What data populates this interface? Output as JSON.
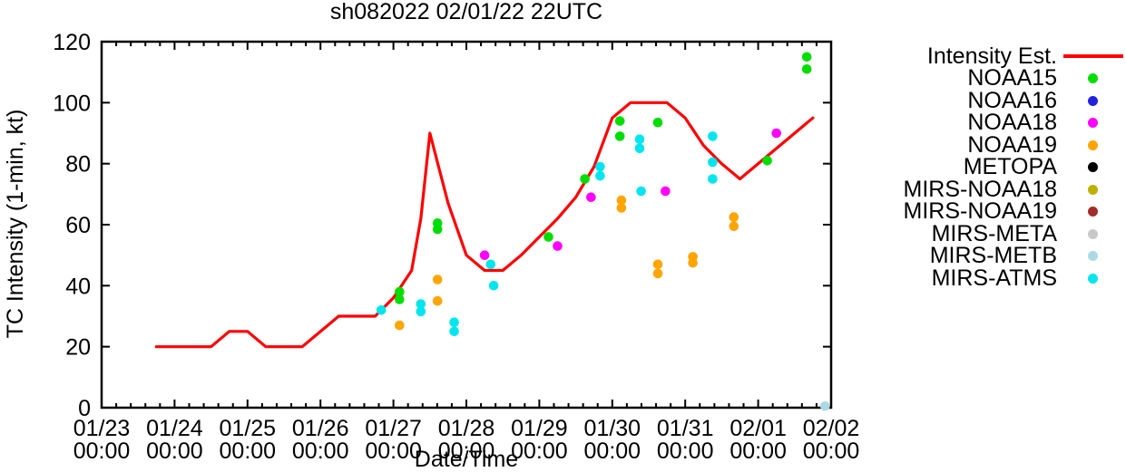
{
  "window": {
    "background": "#ffffff",
    "text_color": "#000000"
  },
  "chart_data": {
    "type": "line",
    "title": "sh082022 02/01/22 22UTC",
    "xlabel": "Date/Time",
    "ylabel": "TC Intensity (1-min, kt)",
    "grid": false,
    "legend_position": "right-outside",
    "x_axis": {
      "unit": "hours since 01/23 00:00",
      "range": [
        0,
        240
      ],
      "minor_divisions_per_day": 5,
      "major_ticks": [
        {
          "hours": 0,
          "date": "01/23",
          "time": "00:00"
        },
        {
          "hours": 24,
          "date": "01/24",
          "time": "00:00"
        },
        {
          "hours": 48,
          "date": "01/25",
          "time": "00:00"
        },
        {
          "hours": 72,
          "date": "01/26",
          "time": "00:00"
        },
        {
          "hours": 96,
          "date": "01/27",
          "time": "00:00"
        },
        {
          "hours": 120,
          "date": "01/28",
          "time": "00:00"
        },
        {
          "hours": 144,
          "date": "01/29",
          "time": "00:00"
        },
        {
          "hours": 168,
          "date": "01/30",
          "time": "00:00"
        },
        {
          "hours": 192,
          "date": "01/31",
          "time": "00:00"
        },
        {
          "hours": 216,
          "date": "02/01",
          "time": "00:00"
        },
        {
          "hours": 240,
          "date": "02/02",
          "time": "00:00"
        }
      ]
    },
    "y_axis": {
      "range": [
        0,
        120
      ],
      "ticks": [
        0,
        20,
        40,
        60,
        80,
        100,
        120
      ]
    },
    "series": [
      {
        "name": "Intensity Est.",
        "style": "line",
        "color": "#ff0000",
        "points": [
          [
            18,
            20
          ],
          [
            36,
            20
          ],
          [
            42,
            25
          ],
          [
            48,
            25
          ],
          [
            54,
            20
          ],
          [
            66,
            20
          ],
          [
            78,
            30
          ],
          [
            90,
            30
          ],
          [
            96,
            36
          ],
          [
            102,
            45
          ],
          [
            105,
            62
          ],
          [
            108,
            90
          ],
          [
            114,
            67
          ],
          [
            120,
            50
          ],
          [
            126,
            45
          ],
          [
            132,
            45
          ],
          [
            138,
            50
          ],
          [
            144,
            56
          ],
          [
            150,
            62
          ],
          [
            156,
            69
          ],
          [
            162,
            79
          ],
          [
            168,
            95
          ],
          [
            174,
            100
          ],
          [
            186,
            100
          ],
          [
            192,
            95
          ],
          [
            198,
            86
          ],
          [
            204,
            80
          ],
          [
            210,
            75
          ],
          [
            234,
            95
          ]
        ]
      },
      {
        "name": "NOAA15",
        "style": "points",
        "color": "#00dd00",
        "points": [
          [
            98,
            38
          ],
          [
            98,
            35.5
          ],
          [
            110.5,
            60.5
          ],
          [
            110.5,
            58.5
          ],
          [
            147,
            56
          ],
          [
            159,
            75
          ],
          [
            170.5,
            94
          ],
          [
            170.5,
            89
          ],
          [
            183,
            93.5
          ],
          [
            219,
            81
          ],
          [
            232,
            115
          ],
          [
            232,
            111
          ]
        ]
      },
      {
        "name": "NOAA16",
        "style": "points",
        "color": "#2222dd",
        "points": []
      },
      {
        "name": "NOAA18",
        "style": "points",
        "color": "#ff00ff",
        "points": [
          [
            126,
            50
          ],
          [
            150,
            53
          ],
          [
            161,
            69
          ],
          [
            185.5,
            71
          ],
          [
            222,
            90
          ]
        ]
      },
      {
        "name": "NOAA19",
        "style": "points",
        "color": "#ffa500",
        "points": [
          [
            98,
            27
          ],
          [
            110.5,
            42
          ],
          [
            110.5,
            35
          ],
          [
            171,
            68
          ],
          [
            171,
            65.5
          ],
          [
            183,
            47
          ],
          [
            183,
            44
          ],
          [
            194.5,
            49.5
          ],
          [
            194.5,
            47.5
          ],
          [
            208,
            62.5
          ],
          [
            208,
            59.5
          ]
        ]
      },
      {
        "name": "METOPA",
        "style": "points",
        "color": "#000000",
        "points": []
      },
      {
        "name": "MIRS-NOAA18",
        "style": "points",
        "color": "#bfb000",
        "points": []
      },
      {
        "name": "MIRS-NOAA19",
        "style": "points",
        "color": "#a52a2a",
        "points": []
      },
      {
        "name": "MIRS-META",
        "style": "points",
        "color": "#c8c8c8",
        "points": []
      },
      {
        "name": "MIRS-METB",
        "style": "points",
        "color": "#add8e6",
        "points": [
          [
            238,
            0.5
          ]
        ]
      },
      {
        "name": "MIRS-ATMS",
        "style": "points",
        "color": "#00e5ee",
        "points": [
          [
            92,
            32
          ],
          [
            105,
            34
          ],
          [
            105,
            31.5
          ],
          [
            116,
            28
          ],
          [
            116,
            25
          ],
          [
            128,
            47
          ],
          [
            129,
            40
          ],
          [
            164,
            79
          ],
          [
            164,
            76
          ],
          [
            177,
            88
          ],
          [
            177,
            85
          ],
          [
            177.5,
            71
          ],
          [
            201,
            89
          ],
          [
            201,
            80.5
          ],
          [
            201,
            75
          ]
        ]
      }
    ]
  }
}
